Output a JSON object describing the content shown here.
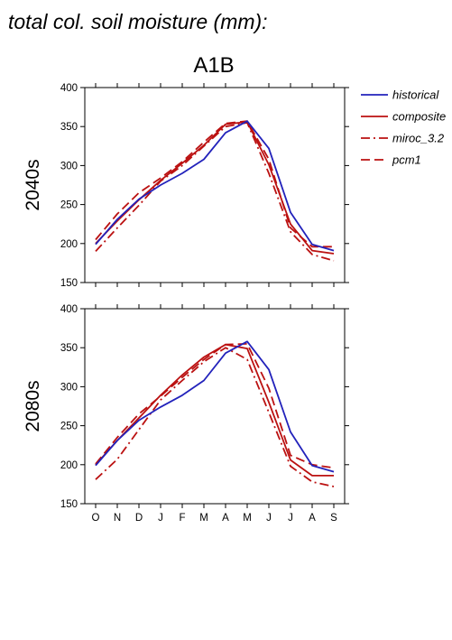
{
  "title": "total col. soil moisture (mm):",
  "scenario": "A1B",
  "chart_data": {
    "type": "line",
    "categories": [
      "O",
      "N",
      "D",
      "J",
      "F",
      "M",
      "A",
      "M",
      "J",
      "J",
      "A",
      "S"
    ],
    "ylim": [
      150,
      400
    ],
    "yticks": [
      150,
      200,
      250,
      300,
      350,
      400
    ],
    "grid": false,
    "legend": {
      "position": "right",
      "entries": [
        {
          "name": "historical",
          "color": "#2222bb",
          "dash": "solid"
        },
        {
          "name": "composite",
          "color": "#bb1111",
          "dash": "solid"
        },
        {
          "name": "miroc_3.2",
          "color": "#bb1111",
          "dash": "dashdot"
        },
        {
          "name": "pcm1",
          "color": "#bb1111",
          "dash": "dashed"
        }
      ]
    },
    "panels": [
      {
        "label": "2040s",
        "series": [
          {
            "name": "historical",
            "values": [
              199,
              231,
              257,
              275,
              290,
              308,
              342,
              357,
              322,
              240,
              199,
              191
            ]
          },
          {
            "name": "composite",
            "values": [
              200,
              229,
              256,
              281,
              303,
              326,
              353,
              356,
              301,
              225,
              191,
              187
            ]
          },
          {
            "name": "miroc_3.2",
            "values": [
              190,
              220,
              249,
              280,
              300,
              325,
              350,
              355,
              290,
              215,
              186,
              178
            ]
          },
          {
            "name": "pcm1",
            "values": [
              205,
              238,
              265,
              284,
              305,
              330,
              354,
              357,
              308,
              220,
              196,
              196
            ]
          }
        ]
      },
      {
        "label": "2080s",
        "series": [
          {
            "name": "historical",
            "values": [
              199,
              231,
              257,
              274,
              289,
              308,
              343,
              358,
              322,
              242,
              199,
              191
            ]
          },
          {
            "name": "composite",
            "values": [
              200,
              231,
              260,
              289,
              315,
              338,
              354,
              349,
              280,
              206,
              186,
              186
            ]
          },
          {
            "name": "miroc_3.2",
            "values": [
              181,
              207,
              245,
              283,
              308,
              332,
              350,
              335,
              267,
              198,
              178,
              172
            ]
          },
          {
            "name": "pcm1",
            "values": [
              201,
              235,
              265,
              288,
              312,
              335,
              354,
              355,
              298,
              212,
              200,
              196
            ]
          }
        ]
      }
    ]
  }
}
